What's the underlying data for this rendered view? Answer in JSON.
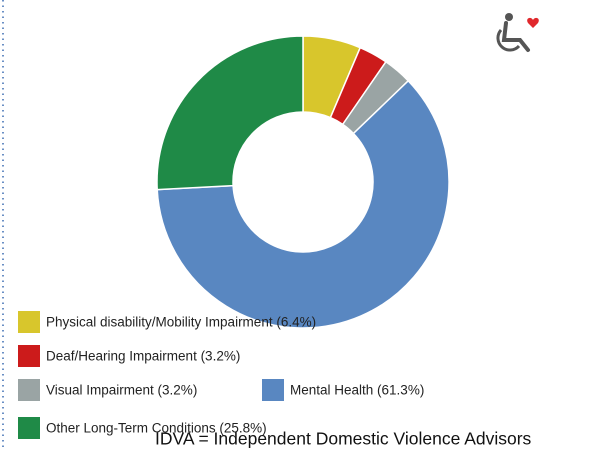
{
  "chart_data": {
    "type": "pie",
    "categories": [
      "Physical disability/Mobility Impairment (6.4%)",
      "Deaf/Hearing Impairment (3.2%)",
      "Visual Impairment (3.2%)",
      "Mental Health (61.3%)",
      "Other Long-Term Conditions (25.8%)"
    ],
    "values": [
      6.4,
      3.2,
      3.2,
      61.3,
      25.8
    ],
    "colors": [
      "#d8c62c",
      "#cc1b1b",
      "#9aa4a4",
      "#5987c1",
      "#1f8a47"
    ],
    "donut": true,
    "footnote": "IDVA = Independent Domestic Violence Advisors"
  }
}
